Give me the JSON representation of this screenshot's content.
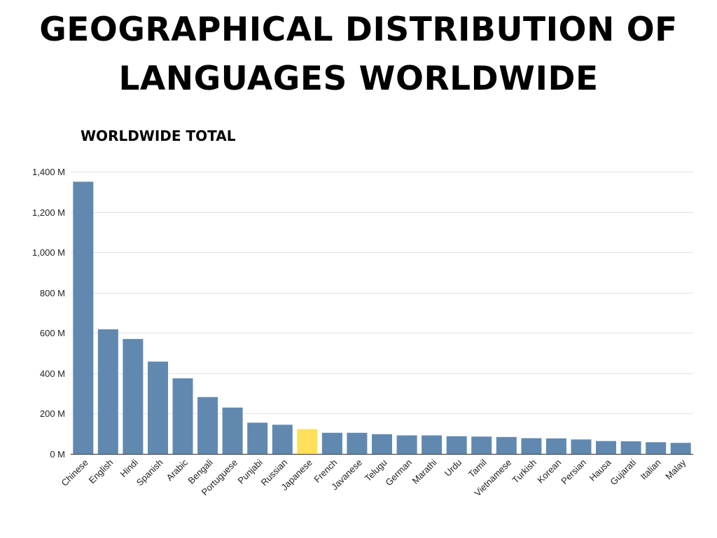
{
  "title_lines": [
    "GEOGRAPHICAL DISTRIBUTION OF",
    "LANGUAGES WORLDWIDE"
  ],
  "colors": {
    "bar": "#6189b0",
    "highlight": "#ffe05a",
    "grid": "#e2e2e2",
    "axis": "#444444"
  },
  "chart_data": {
    "type": "bar",
    "title": "",
    "subtitle": "WORLDWIDE TOTAL",
    "xlabel": "",
    "ylabel": "",
    "ylim": [
      0,
      1400
    ],
    "yticks": [
      0,
      200,
      400,
      600,
      800,
      1000,
      1200,
      1400
    ],
    "ytick_labels": [
      "0 M",
      "200 M",
      "400 M",
      "600 M",
      "800 M",
      "1,000 M",
      "1,200 M",
      "1,400 M"
    ],
    "grid": true,
    "highlight_category": "Japanese",
    "categories": [
      "Chinese",
      "English",
      "Hindi",
      "Spanish",
      "Arabic",
      "Bengali",
      "Portuguese",
      "Punjabi",
      "Russian",
      "Japanese",
      "French",
      "Javanese",
      "Telugu",
      "German",
      "Marathi",
      "Urdu",
      "Tamil",
      "Vietnamese",
      "Turkish",
      "Korean",
      "Persian",
      "Hausa",
      "Gujarati",
      "Italian",
      "Malay"
    ],
    "values": [
      1350,
      618,
      570,
      458,
      375,
      282,
      230,
      155,
      145,
      123,
      105,
      105,
      98,
      92,
      92,
      88,
      86,
      84,
      78,
      77,
      72,
      64,
      63,
      58,
      55
    ]
  }
}
